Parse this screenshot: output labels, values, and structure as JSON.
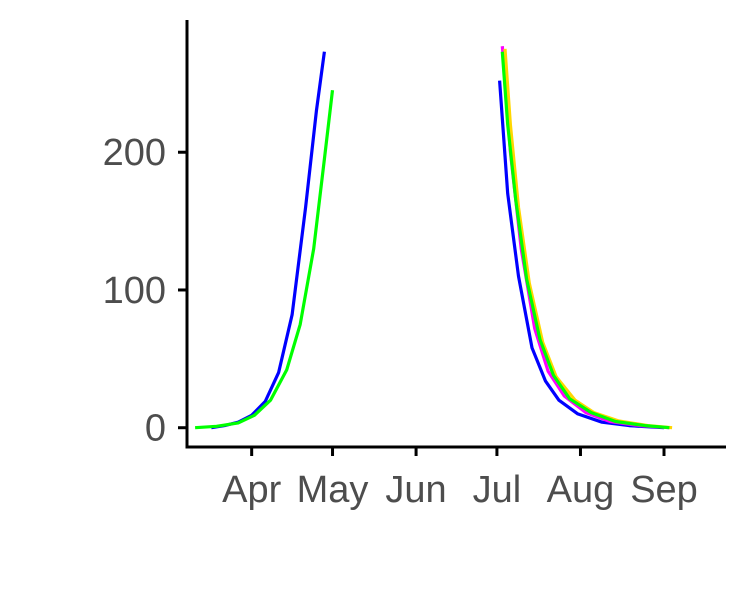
{
  "chart_data": {
    "type": "line",
    "title": "",
    "xlabel": "",
    "ylabel": "",
    "x_axis_type": "date",
    "xlim": [
      "2020-03-08",
      "2020-09-24"
    ],
    "ylim": [
      -14,
      296
    ],
    "grid": false,
    "legend": "none",
    "x_ticks": [
      {
        "date": "2020-04-01",
        "label": "Apr"
      },
      {
        "date": "2020-05-01",
        "label": "May"
      },
      {
        "date": "2020-06-01",
        "label": "Jun"
      },
      {
        "date": "2020-07-01",
        "label": "Jul"
      },
      {
        "date": "2020-08-01",
        "label": "Aug"
      },
      {
        "date": "2020-09-01",
        "label": "Sep"
      }
    ],
    "y_ticks": [
      {
        "value": 0,
        "label": "0"
      },
      {
        "value": 100,
        "label": "100"
      },
      {
        "value": 200,
        "label": "200"
      }
    ],
    "series": [
      {
        "color": "#0000ff",
        "segments": [
          [
            [
              "2020-03-17",
              0
            ],
            [
              "2020-03-22",
              1.5
            ],
            [
              "2020-03-27",
              4
            ],
            [
              "2020-04-01",
              9
            ],
            [
              "2020-04-06",
              19
            ],
            [
              "2020-04-11",
              40
            ],
            [
              "2020-04-16",
              82
            ],
            [
              "2020-04-21",
              160
            ],
            [
              "2020-04-25",
              230
            ],
            [
              "2020-04-28",
              273
            ]
          ],
          [
            [
              "2020-07-02",
              252
            ],
            [
              "2020-07-05",
              170
            ],
            [
              "2020-07-09",
              110
            ],
            [
              "2020-07-14",
              58
            ],
            [
              "2020-07-19",
              34
            ],
            [
              "2020-07-24",
              20
            ],
            [
              "2020-07-31",
              10
            ],
            [
              "2020-08-09",
              4
            ],
            [
              "2020-08-19",
              1.5
            ],
            [
              "2020-09-01",
              0
            ]
          ]
        ]
      },
      {
        "color": "#ff00ff",
        "segments": [
          [
            [
              "2020-07-03",
              277
            ],
            [
              "2020-07-04",
              255
            ],
            [
              "2020-07-06",
              200
            ],
            [
              "2020-07-10",
              130
            ],
            [
              "2020-07-15",
              72
            ],
            [
              "2020-07-20",
              41
            ],
            [
              "2020-07-26",
              23
            ],
            [
              "2020-08-03",
              11
            ],
            [
              "2020-08-12",
              4.5
            ],
            [
              "2020-08-23",
              1.5
            ],
            [
              "2020-09-03",
              0
            ]
          ]
        ]
      },
      {
        "color": "#ffd700",
        "segments": [
          [
            [
              "2020-07-04",
              275
            ],
            [
              "2020-07-06",
              220
            ],
            [
              "2020-07-09",
              160
            ],
            [
              "2020-07-13",
              105
            ],
            [
              "2020-07-18",
              62
            ],
            [
              "2020-07-23",
              37
            ],
            [
              "2020-07-30",
              20
            ],
            [
              "2020-08-06",
              11
            ],
            [
              "2020-08-15",
              5
            ],
            [
              "2020-08-26",
              1.5
            ],
            [
              "2020-09-04",
              0
            ]
          ]
        ]
      },
      {
        "color": "#00ff00",
        "segments": [
          [
            [
              "2020-03-11",
              0
            ],
            [
              "2020-03-19",
              1
            ],
            [
              "2020-03-27",
              3.5
            ],
            [
              "2020-04-02",
              9
            ],
            [
              "2020-04-08",
              20
            ],
            [
              "2020-04-14",
              42
            ],
            [
              "2020-04-19",
              75
            ],
            [
              "2020-04-24",
              130
            ],
            [
              "2020-04-28",
              195
            ],
            [
              "2020-05-01",
              245
            ]
          ],
          [
            [
              "2020-07-03",
              273
            ],
            [
              "2020-07-05",
              220
            ],
            [
              "2020-07-08",
              165
            ],
            [
              "2020-07-12",
              108
            ],
            [
              "2020-07-17",
              64
            ],
            [
              "2020-07-22",
              38
            ],
            [
              "2020-07-28",
              21
            ],
            [
              "2020-08-05",
              11
            ],
            [
              "2020-08-14",
              4.5
            ],
            [
              "2020-08-25",
              1.5
            ],
            [
              "2020-09-03",
              0
            ]
          ]
        ]
      }
    ]
  }
}
